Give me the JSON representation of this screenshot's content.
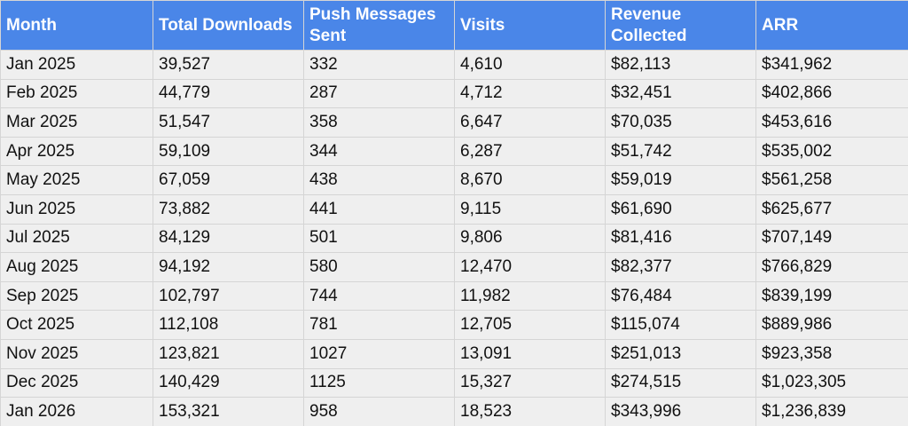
{
  "table": {
    "headers": [
      "Month",
      "Total Downloads",
      "Push Messages Sent",
      "Visits",
      "Revenue Collected",
      "ARR"
    ],
    "rows": [
      [
        "Jan 2025",
        "39,527",
        "332",
        "4,610",
        "$82,113",
        "$341,962"
      ],
      [
        "Feb 2025",
        "44,779",
        "287",
        "4,712",
        "$32,451",
        "$402,866"
      ],
      [
        "Mar 2025",
        "51,547",
        "358",
        "6,647",
        "$70,035",
        "$453,616"
      ],
      [
        "Apr 2025",
        "59,109",
        "344",
        "6,287",
        "$51,742",
        "$535,002"
      ],
      [
        "May 2025",
        "67,059",
        "438",
        "8,670",
        "$59,019",
        "$561,258"
      ],
      [
        "Jun 2025",
        "73,882",
        "441",
        "9,115",
        "$61,690",
        "$625,677"
      ],
      [
        "Jul 2025",
        "84,129",
        "501",
        "9,806",
        "$81,416",
        "$707,149"
      ],
      [
        "Aug 2025",
        "94,192",
        "580",
        "12,470",
        "$82,377",
        "$766,829"
      ],
      [
        "Sep 2025",
        "102,797",
        "744",
        "11,982",
        "$76,484",
        "$839,199"
      ],
      [
        "Oct 2025",
        "112,108",
        "781",
        "12,705",
        "$115,074",
        "$889,986"
      ],
      [
        "Nov 2025",
        "123,821",
        "1027",
        "13,091",
        "$251,013",
        "$923,358"
      ],
      [
        "Dec 2025",
        "140,429",
        "1125",
        "15,327",
        "$274,515",
        "$1,023,305"
      ],
      [
        "Jan 2026",
        "153,321",
        "958",
        "18,523",
        "$343,996",
        "$1,236,839"
      ]
    ]
  },
  "colors": {
    "header_background": "#4a86e8",
    "header_text": "#ffffff",
    "cell_background": "#efefef",
    "grid_line": "#d5d5d5"
  }
}
